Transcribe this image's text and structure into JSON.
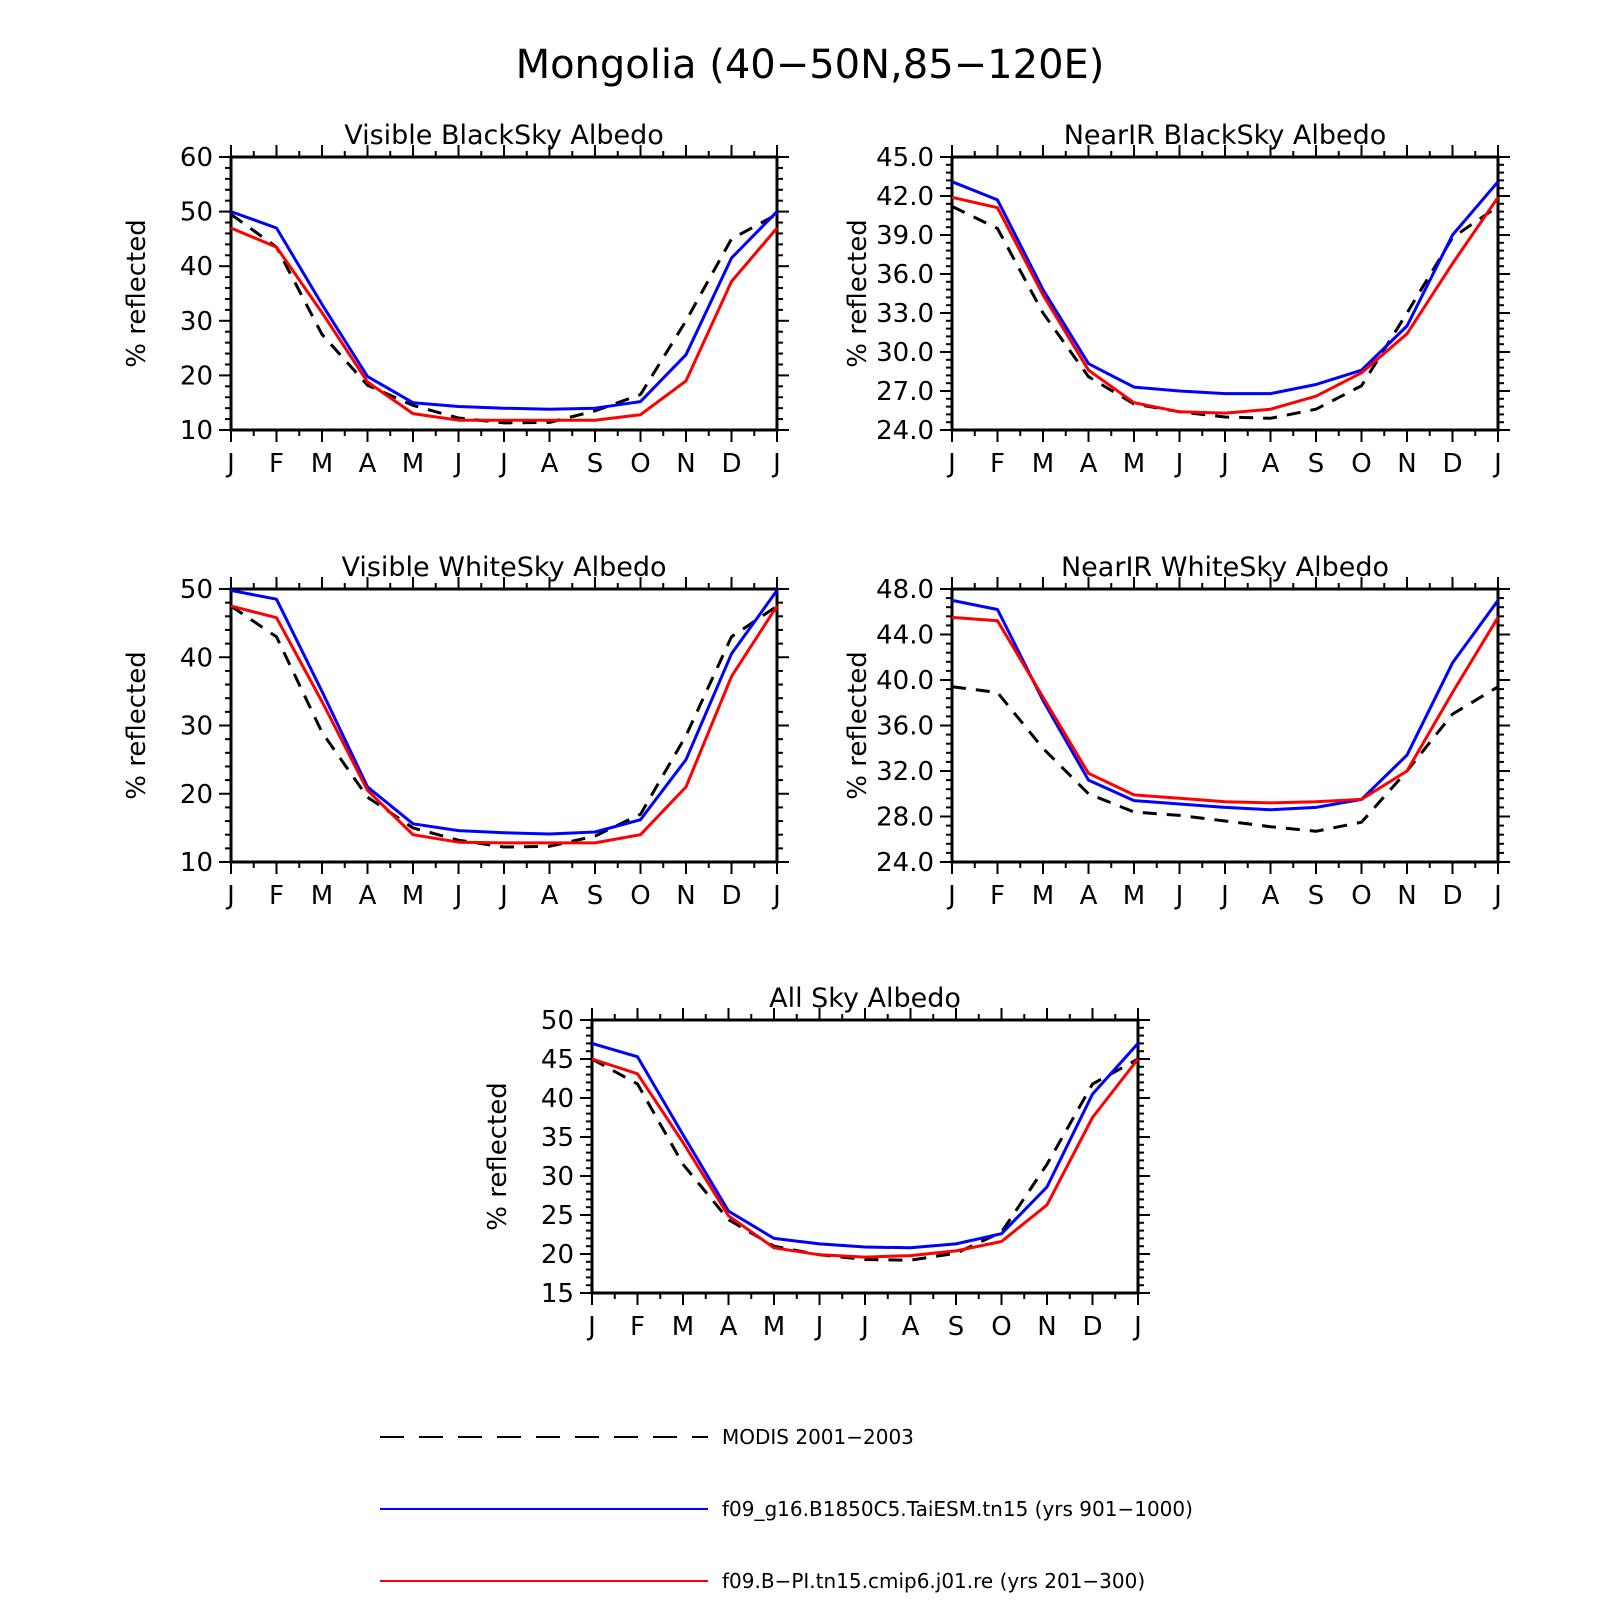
{
  "figure": {
    "title": "Mongolia (40−50N,85−120E)"
  },
  "styles": {
    "colors": {
      "MODIS": "#000000",
      "TaiESM": "#0000ff",
      "BPI": "#ff0000"
    },
    "dash": {
      "MODIS": true,
      "TaiESM": false,
      "BPI": false
    }
  },
  "legend": [
    {
      "key": "MODIS",
      "label": "MODIS 2001−2003"
    },
    {
      "key": "TaiESM",
      "label": "f09_g16.B1850C5.TaiESM.tn15 (yrs 901−1000)"
    },
    {
      "key": "BPI",
      "label": "f09.B−PI.tn15.cmip6.j01.re (yrs 201−300)"
    }
  ],
  "chart_data": [
    {
      "type": "line",
      "title": "Visible BlackSky Albedo",
      "ylabel": "% reflected",
      "categories": [
        "J",
        "F",
        "M",
        "A",
        "M",
        "J",
        "J",
        "A",
        "S",
        "O",
        "N",
        "D",
        "J"
      ],
      "ylim": [
        10,
        60
      ],
      "yticks": [
        "10",
        "20",
        "30",
        "40",
        "50",
        "60"
      ],
      "series": [
        {
          "key": "MODIS",
          "name": "MODIS 2001−2003",
          "values": [
            49.5,
            43.5,
            27.5,
            18.2,
            14.5,
            12.2,
            11.3,
            11.4,
            13.5,
            16.5,
            30,
            45,
            49.5
          ]
        },
        {
          "key": "TaiESM",
          "name": "f09_g16.B1850C5.TaiESM.tn15 (yrs 901−1000)",
          "values": [
            50,
            47,
            33,
            19.8,
            15,
            14.3,
            14,
            13.8,
            14,
            15.2,
            23.8,
            41.5,
            50
          ]
        },
        {
          "key": "BPI",
          "name": "f09.B−PI.tn15.cmip6.j01.re (yrs 201−300)",
          "values": [
            47,
            43.5,
            31.5,
            18.8,
            13,
            11.8,
            11.8,
            11.8,
            11.8,
            12.8,
            19,
            37.2,
            47
          ]
        }
      ]
    },
    {
      "type": "line",
      "title": "NearIR BlackSky Albedo",
      "ylabel": "% reflected",
      "categories": [
        "J",
        "F",
        "M",
        "A",
        "M",
        "J",
        "J",
        "A",
        "S",
        "O",
        "N",
        "D",
        "J"
      ],
      "ylim": [
        24,
        45
      ],
      "yticks": [
        "24.0",
        "27.0",
        "30.0",
        "33.0",
        "36.0",
        "39.0",
        "42.0",
        "45.0"
      ],
      "series": [
        {
          "key": "MODIS",
          "name": "MODIS 2001−2003",
          "values": [
            41.2,
            39.5,
            33,
            28.1,
            26,
            25.4,
            25,
            24.9,
            25.6,
            27.4,
            33,
            38.8,
            41.2
          ]
        },
        {
          "key": "TaiESM",
          "name": "f09_g16.B1850C5.TaiESM.tn15 (yrs 901−1000)",
          "values": [
            43.1,
            41.7,
            34.8,
            29.1,
            27.3,
            27,
            26.8,
            26.8,
            27.5,
            28.6,
            32,
            39,
            43.1
          ]
        },
        {
          "key": "BPI",
          "name": "f09.B−PI.tn15.cmip6.j01.re (yrs 201−300)",
          "values": [
            41.9,
            41.1,
            34.4,
            28.6,
            26.1,
            25.4,
            25.3,
            25.6,
            26.6,
            28.4,
            31.4,
            36.8,
            41.9
          ]
        }
      ]
    },
    {
      "type": "line",
      "title": "Visible WhiteSky Albedo",
      "ylabel": "% reflected",
      "categories": [
        "J",
        "F",
        "M",
        "A",
        "M",
        "J",
        "J",
        "A",
        "S",
        "O",
        "N",
        "D",
        "J"
      ],
      "ylim": [
        10,
        50
      ],
      "yticks": [
        "10",
        "20",
        "30",
        "40",
        "50"
      ],
      "series": [
        {
          "key": "MODIS",
          "name": "MODIS 2001−2003",
          "values": [
            47.5,
            43,
            29,
            19.5,
            15,
            13.2,
            12.2,
            12.3,
            13.8,
            17,
            28.5,
            43,
            47.5
          ]
        },
        {
          "key": "TaiESM",
          "name": "f09_g16.B1850C5.TaiESM.tn15 (yrs 901−1000)",
          "values": [
            49.8,
            48.5,
            35,
            21,
            15.6,
            14.6,
            14.3,
            14.1,
            14.4,
            16.2,
            25,
            40.5,
            49.8
          ]
        },
        {
          "key": "BPI",
          "name": "f09.B−PI.tn15.cmip6.j01.re (yrs 201−300)",
          "values": [
            47.5,
            45.8,
            33.5,
            20.5,
            14,
            12.9,
            12.8,
            12.8,
            12.8,
            14,
            21,
            37.2,
            47.5
          ]
        }
      ]
    },
    {
      "type": "line",
      "title": "NearIR WhiteSky Albedo",
      "ylabel": "% reflected",
      "categories": [
        "J",
        "F",
        "M",
        "A",
        "M",
        "J",
        "J",
        "A",
        "S",
        "O",
        "N",
        "D",
        "J"
      ],
      "ylim": [
        24,
        48
      ],
      "yticks": [
        "24.0",
        "28.0",
        "32.0",
        "36.0",
        "40.0",
        "44.0",
        "48.0"
      ],
      "series": [
        {
          "key": "MODIS",
          "name": "MODIS 2001−2003",
          "values": [
            39.4,
            38.9,
            34,
            30,
            28.4,
            28.1,
            27.6,
            27.1,
            26.7,
            27.5,
            32,
            37,
            39.4
          ]
        },
        {
          "key": "TaiESM",
          "name": "f09_g16.B1850C5.TaiESM.tn15 (yrs 901−1000)",
          "values": [
            47,
            46.2,
            38.2,
            31.2,
            29.4,
            29.1,
            28.8,
            28.6,
            28.8,
            29.5,
            33.4,
            41.5,
            47
          ]
        },
        {
          "key": "BPI",
          "name": "f09.B−PI.tn15.cmip6.j01.re (yrs 201−300)",
          "values": [
            45.5,
            45.2,
            38.5,
            31.8,
            29.9,
            29.6,
            29.3,
            29.2,
            29.3,
            29.5,
            32,
            38.9,
            45.5
          ]
        }
      ]
    },
    {
      "type": "line",
      "title": "All Sky Albedo",
      "ylabel": "% reflected",
      "categories": [
        "J",
        "F",
        "M",
        "A",
        "M",
        "J",
        "J",
        "A",
        "S",
        "O",
        "N",
        "D",
        "J"
      ],
      "ylim": [
        15,
        50
      ],
      "yticks": [
        "15",
        "20",
        "25",
        "30",
        "35",
        "40",
        "45",
        "50"
      ],
      "series": [
        {
          "key": "MODIS",
          "name": "MODIS 2001−2003",
          "values": [
            45,
            41.8,
            31.5,
            24.4,
            21,
            19.9,
            19.3,
            19.2,
            20.1,
            22.8,
            31.5,
            41.8,
            45
          ]
        },
        {
          "key": "TaiESM",
          "name": "f09_g16.B1850C5.TaiESM.tn15 (yrs 901−1000)",
          "values": [
            47,
            45.3,
            35.3,
            25.5,
            22,
            21.3,
            20.9,
            20.8,
            21.3,
            22.6,
            28.6,
            40.5,
            47
          ]
        },
        {
          "key": "BPI",
          "name": "f09.B−PI.tn15.cmip6.j01.re (yrs 201−300)",
          "values": [
            45,
            43.1,
            34.3,
            24.9,
            20.8,
            19.9,
            19.6,
            19.8,
            20.4,
            21.6,
            26.3,
            37.5,
            45
          ]
        }
      ]
    }
  ]
}
